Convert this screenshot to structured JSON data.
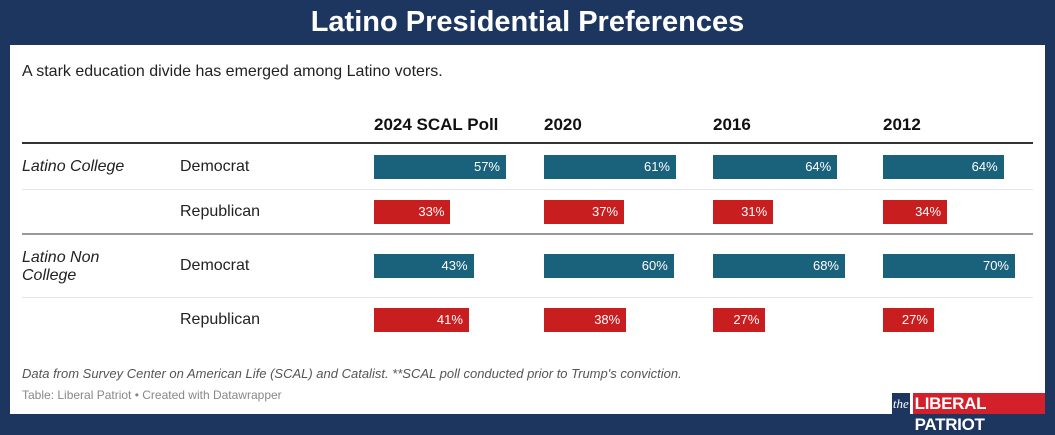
{
  "title": "Latino Presidential Preferences",
  "subtitle": "A stark education divide has emerged among Latino voters.",
  "colors": {
    "democrat": "#1a617c",
    "republican": "#c81e20",
    "frame": "#1c3660"
  },
  "chart_data": {
    "type": "table",
    "columns": [
      "2024 SCAL Poll",
      "2020",
      "2016",
      "2012"
    ],
    "groups": [
      {
        "label": "Latino College",
        "rows": [
          {
            "party": "Democrat",
            "values": [
              57,
              61,
              64,
              64
            ]
          },
          {
            "party": "Republican",
            "values": [
              33,
              37,
              31,
              34
            ]
          }
        ]
      },
      {
        "label": "Latino Non College",
        "rows": [
          {
            "party": "Democrat",
            "values": [
              43,
              60,
              68,
              70
            ]
          },
          {
            "party": "Republican",
            "values": [
              41,
              38,
              27,
              27
            ]
          }
        ]
      }
    ]
  },
  "footnote": "Data from Survey Center on American Life (SCAL) and Catalist. **SCAL poll conducted prior to Trump's conviction.",
  "credit": "Table: Liberal Patriot • Created with Datawrapper",
  "logo": {
    "the": "the",
    "name": "LIBERAL PATRIOT"
  }
}
